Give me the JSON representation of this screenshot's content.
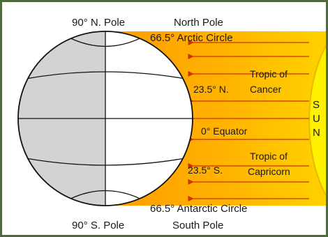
{
  "diagram": {
    "labels": {
      "north_pole_deg": "90° N. Pole",
      "north_pole": "North Pole",
      "arctic_circle": "66.5° Arctic Circle",
      "tropic_cancer_1": "Tropic of",
      "tropic_cancer_2": "Cancer",
      "lat_23_5_n": "23.5° N.",
      "equator": "0° Equator",
      "tropic_capricorn_1": "Tropic of",
      "tropic_capricorn_2": "Capricorn",
      "lat_23_5_s": "23.5° S.",
      "antarctic_circle": "66.5° Antarctic Circle",
      "south_pole_deg": "90° S. Pole",
      "south_pole": "South Pole"
    },
    "sun_letters": [
      "S",
      "U",
      "N"
    ],
    "colors": {
      "sunlight_gradient_start": "#ff9a00",
      "sunlight_gradient_end": "#ffd200",
      "sun": "#fff200",
      "ray_arrow": "#cc3300",
      "globe_dark_half": "#d3d3d3",
      "globe_light_half": "#ffffff",
      "frame": "#4d6b3c"
    }
  }
}
